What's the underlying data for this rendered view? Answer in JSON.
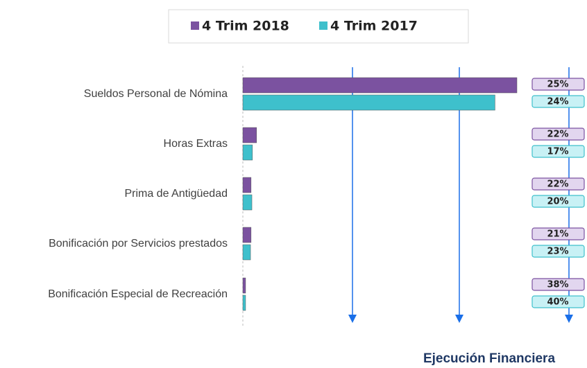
{
  "chart_data": {
    "type": "barh",
    "categories": [
      "Sueldos Personal de Nómina",
      "Horas Extras",
      "Prima de Antigüedad",
      "Bonificación por Servicios prestados",
      "Bonificación Especial de Recreación"
    ],
    "series": [
      {
        "name": "4 Trim 2018",
        "color": "#7b52a0",
        "values": [
          100,
          5,
          3,
          3,
          1
        ],
        "execution": [
          25,
          22,
          22,
          21,
          38
        ],
        "execution_labels": [
          "25%",
          "22%",
          "22%",
          "21%",
          "38%"
        ]
      },
      {
        "name": "4 Trim 2017",
        "color": "#3ec0cc",
        "values": [
          92,
          3.5,
          3.3,
          2.8,
          1
        ],
        "execution": [
          24,
          17,
          20,
          23,
          40
        ],
        "execution_labels": [
          "24%",
          "17%",
          "20%",
          "23%",
          "40%"
        ]
      }
    ],
    "xlim": [
      0,
      100
    ],
    "execution_title": "Ejecución Financiera"
  }
}
